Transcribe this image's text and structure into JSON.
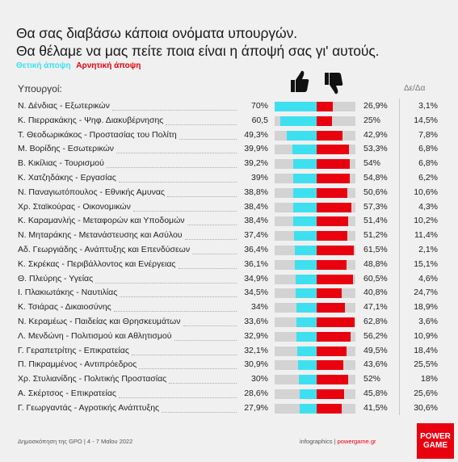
{
  "title_line1": "Θα σας διαβάσω κάποια ονόματα υπουργών.",
  "title_line2": "Θα θέλαμε να μας πείτε ποια είναι η άποψή σας γι' αυτούς.",
  "legend_positive": "Θετική άποψη",
  "legend_negative": "Αρνητική άποψη",
  "header_ministers": "Υπουργοί:",
  "header_delta": "Δε/Δα",
  "icons": {
    "positive": "thumbs-up-icon",
    "negative": "thumbs-down-icon"
  },
  "colors": {
    "positive": "#3ee0f0",
    "negative": "#e8000f",
    "track": "#d3d3d3"
  },
  "footer_left": "Δημοσκόπηση της GPO | 4 - 7 Μαΐου 2022",
  "footer_right_prefix": "infographics | ",
  "footer_right_brand": "powergame.gr",
  "logo_line1": "POWER",
  "logo_line2": "GAME",
  "chart_data": {
    "type": "bar",
    "categories": [
      "Ν. Δένδιας - Εξωτερικών",
      "Κ. Πιερρακάκης - Ψηφ. Διακυβέρνησης",
      "Τ. Θεοδωρικάκος - Προστασίας του Πολίτη",
      "Μ. Βορίδης - Εσωτερικών",
      "Β. Κικίλιας - Τουρισμού",
      "Κ. Χατζηδάκης - Εργασίας",
      "Ν. Παναγιωτόπουλος - Εθνικής Αμυνας",
      "Χρ. Σταϊκούρας - Οικονομικών",
      "Κ. Καραμανλής - Μεταφορών και Υποδομών",
      "Ν. Μηταράκης - Μετανάστευσης και Ασύλου",
      "Αδ. Γεωργιάδης - Ανάπτυξης και Επενδύσεων",
      "Κ. Σκρέκας - Περιβάλλοντος και Ενέργειας",
      "Θ. Πλεύρης - Υγείας",
      "Ι. Πλακιωτάκης - Ναυτιλίας",
      "Κ. Τσιάρας - Δικαιοσύνης",
      "Ν. Κεραμέως - Παιδείας και Θρησκευμάτων",
      "Λ. Μενδώνη - Πολιτισμού και Αθλητισμού",
      "Γ. Γεραπετρίτης - Επικρατείας",
      "Π. Πικραμμένος - Αντιπρόεδρος",
      "Χρ. Στυλιανίδης - Πολιτικής Προστασίας",
      "Α. Σκέρτσος - Επικρατείας",
      "Γ. Γεωργαντάς - Αγροτικής Ανάπτυξης"
    ],
    "positive_labels": [
      "70%",
      "60,5",
      "49,3%",
      "39,9%",
      "39,2%",
      "39%",
      "38,8%",
      "38,4%",
      "38,4%",
      "37,4%",
      "36,4%",
      "36,1%",
      "34,9%",
      "34,5%",
      "34%",
      "33,6%",
      "32,9%",
      "32,1%",
      "30,9%",
      "30%",
      "28,6%",
      "27,9%"
    ],
    "negative_labels": [
      "26,9%",
      "25%",
      "42,9%",
      "53,3%",
      "54%",
      "54,8%",
      "50,6%",
      "57,3%",
      "51,4%",
      "51,2%",
      "61,5%",
      "48,8%",
      "60,5%",
      "40,8%",
      "47,1%",
      "62,8%",
      "56,2%",
      "49,5%",
      "43,6%",
      "52%",
      "45,8%",
      "41,5%"
    ],
    "delta_labels": [
      "3,1%",
      "14,5%",
      "7,8%",
      "6,8%",
      "6,8%",
      "6,2%",
      "10,6%",
      "4,3%",
      "10,2%",
      "11,4%",
      "2,1%",
      "15,1%",
      "4,6%",
      "24,7%",
      "18,9%",
      "3,6%",
      "10,9%",
      "18,4%",
      "25,5%",
      "18%",
      "25,6%",
      "30,6%"
    ],
    "series": [
      {
        "name": "Θετική άποψη",
        "values": [
          70,
          60.5,
          49.3,
          39.9,
          39.2,
          39,
          38.8,
          38.4,
          38.4,
          37.4,
          36.4,
          36.1,
          34.9,
          34.5,
          34,
          33.6,
          32.9,
          32.1,
          30.9,
          30,
          28.6,
          27.9
        ]
      },
      {
        "name": "Αρνητική άποψη",
        "values": [
          26.9,
          25,
          42.9,
          53.3,
          54,
          54.8,
          50.6,
          57.3,
          51.4,
          51.2,
          61.5,
          48.8,
          60.5,
          40.8,
          47.1,
          62.8,
          56.2,
          49.5,
          43.6,
          52,
          45.8,
          41.5
        ]
      },
      {
        "name": "Δε/Δα",
        "values": [
          3.1,
          14.5,
          7.8,
          6.8,
          6.8,
          6.2,
          10.6,
          4.3,
          10.2,
          11.4,
          2.1,
          15.1,
          4.6,
          24.7,
          18.9,
          3.6,
          10.9,
          18.4,
          25.5,
          18,
          25.6,
          30.6
        ]
      }
    ],
    "xlim": [
      0,
      100
    ]
  }
}
